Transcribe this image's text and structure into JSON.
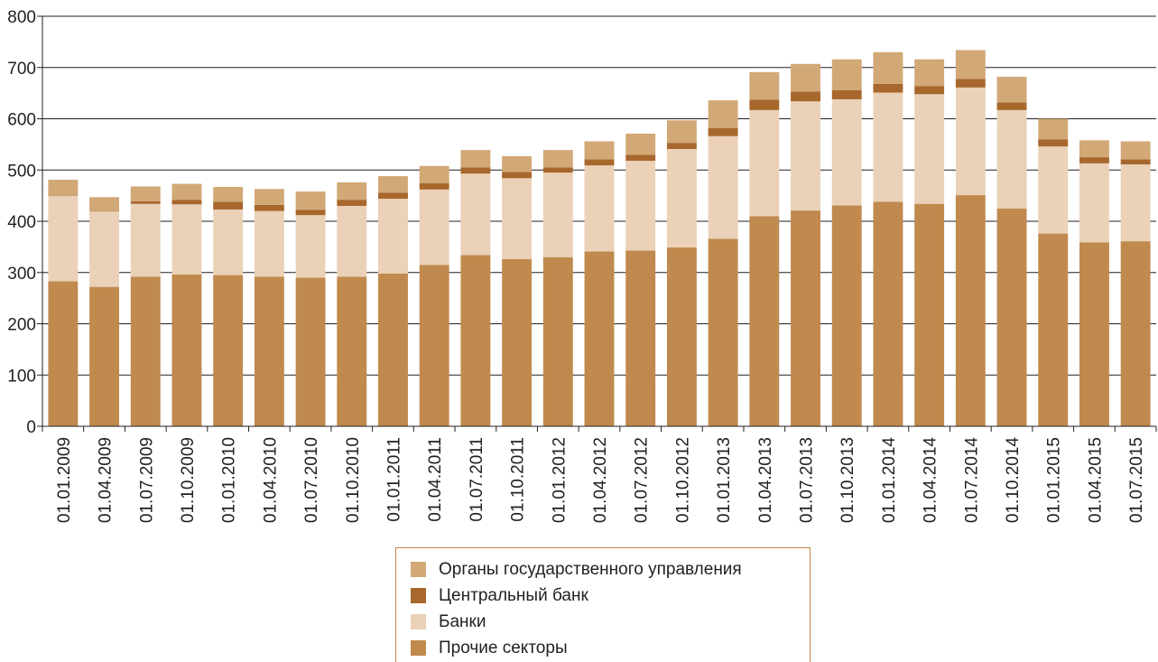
{
  "chart_data": {
    "type": "bar",
    "stacked": true,
    "categories": [
      "01.01.2009",
      "01.04.2009",
      "01.07.2009",
      "01.10.2009",
      "01.01.2010",
      "01.04.2010",
      "01.07.2010",
      "01.10.2010",
      "01.01.2011",
      "01.04.2011",
      "01.07.2011",
      "01.10.2011",
      "01.01.2012",
      "01.04.2012",
      "01.07.2012",
      "01.10.2012",
      "01.01.2013",
      "01.04.2013",
      "01.07.2013",
      "01.10.2013",
      "01.01.2014",
      "01.04.2014",
      "01.07.2014",
      "01.10.2014",
      "01.01.2015",
      "01.04.2015",
      "01.07.2015"
    ],
    "series": [
      {
        "name": "Прочие секторы",
        "color": "#c08a4e",
        "values": [
          283,
          272,
          292,
          296,
          295,
          292,
          290,
          292,
          298,
          315,
          334,
          326,
          330,
          341,
          343,
          349,
          366,
          410,
          421,
          431,
          438,
          434,
          451,
          425,
          376,
          359,
          361
        ]
      },
      {
        "name": "Банки",
        "color": "#ead1b7",
        "values": [
          167,
          147,
          142,
          137,
          128,
          128,
          122,
          138,
          146,
          147,
          159,
          158,
          165,
          168,
          175,
          192,
          200,
          207,
          213,
          207,
          213,
          214,
          210,
          192,
          170,
          154,
          150
        ]
      },
      {
        "name": "Центральный банк",
        "color": "#a8672c",
        "values": [
          1,
          1,
          5,
          9,
          15,
          12,
          10,
          12,
          12,
          12,
          12,
          12,
          10,
          12,
          12,
          12,
          16,
          20,
          19,
          18,
          17,
          16,
          17,
          15,
          14,
          12,
          10
        ]
      },
      {
        "name": "Органы государственного управления",
        "color": "#d2a877",
        "values": [
          30,
          27,
          29,
          31,
          29,
          31,
          36,
          34,
          32,
          34,
          34,
          31,
          34,
          35,
          41,
          44,
          54,
          54,
          54,
          60,
          62,
          52,
          56,
          50,
          40,
          33,
          35
        ]
      }
    ],
    "title": "",
    "xlabel": "",
    "ylabel": "",
    "ylim": [
      0,
      800
    ],
    "yticks": [
      "0",
      "100",
      "200",
      "300",
      "400",
      "500",
      "600",
      "700",
      "800"
    ],
    "grid": true,
    "legend_placement": "bottom-center"
  }
}
